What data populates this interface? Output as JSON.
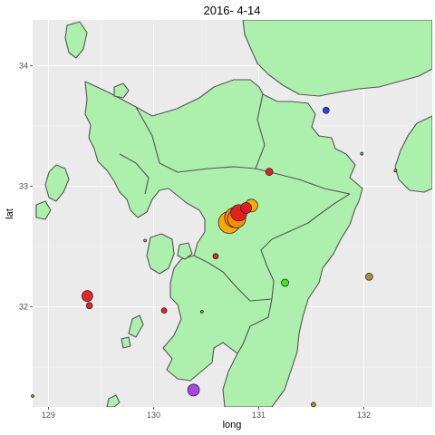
{
  "chart_data": {
    "type": "scatter",
    "title": "2016- 4-14",
    "xlabel": "long",
    "ylabel": "lat",
    "xlim": [
      128.85,
      132.65
    ],
    "ylim": [
      31.17,
      34.38
    ],
    "x_ticks": [
      "129",
      "130",
      "131",
      "132"
    ],
    "y_ticks": [
      "32",
      "33",
      "34"
    ],
    "grid": true,
    "background": "#ebebeb",
    "land_color": "#adefad",
    "points": [
      {
        "x": 130.81,
        "y": 32.78,
        "size": 9,
        "color": "#e31a1c"
      },
      {
        "x": 130.77,
        "y": 32.74,
        "size": 11,
        "color": "#ff7f00"
      },
      {
        "x": 130.72,
        "y": 32.7,
        "size": 12,
        "color": "#ffa500"
      },
      {
        "x": 130.79,
        "y": 32.73,
        "size": 10,
        "color": "#ff8c00"
      },
      {
        "x": 130.93,
        "y": 32.84,
        "size": 7,
        "color": "#ffa500"
      },
      {
        "x": 130.88,
        "y": 32.82,
        "size": 6,
        "color": "#e31a1c"
      },
      {
        "x": 131.1,
        "y": 33.12,
        "size": 4,
        "color": "#e31a1c"
      },
      {
        "x": 131.64,
        "y": 33.63,
        "size": 3.5,
        "color": "#1c39e3"
      },
      {
        "x": 131.25,
        "y": 32.2,
        "size": 4,
        "color": "#3ee31a"
      },
      {
        "x": 132.05,
        "y": 32.25,
        "size": 4,
        "color": "#a58b2a"
      },
      {
        "x": 129.37,
        "y": 32.09,
        "size": 6,
        "color": "#e31a1c"
      },
      {
        "x": 129.39,
        "y": 32.01,
        "size": 3.5,
        "color": "#e31a1c"
      },
      {
        "x": 130.1,
        "y": 31.97,
        "size": 3,
        "color": "#e31a1c"
      },
      {
        "x": 130.59,
        "y": 32.42,
        "size": 3,
        "color": "#e31a1c"
      },
      {
        "x": 130.38,
        "y": 31.31,
        "size": 6.5,
        "color": "#a33ee3"
      },
      {
        "x": 131.52,
        "y": 31.19,
        "size": 2.5,
        "color": "#a58b2a"
      },
      {
        "x": 129.92,
        "y": 32.55,
        "size": 1.5,
        "color": "#ff8c00"
      },
      {
        "x": 130.46,
        "y": 31.96,
        "size": 1.5,
        "color": "#a58b2a"
      },
      {
        "x": 131.98,
        "y": 33.27,
        "size": 1.5,
        "color": "#3ee31a"
      },
      {
        "x": 132.3,
        "y": 33.13,
        "size": 1.5,
        "color": "#ff8c00"
      },
      {
        "x": 128.85,
        "y": 31.26,
        "size": 1.5,
        "color": "#a58b2a"
      }
    ]
  }
}
